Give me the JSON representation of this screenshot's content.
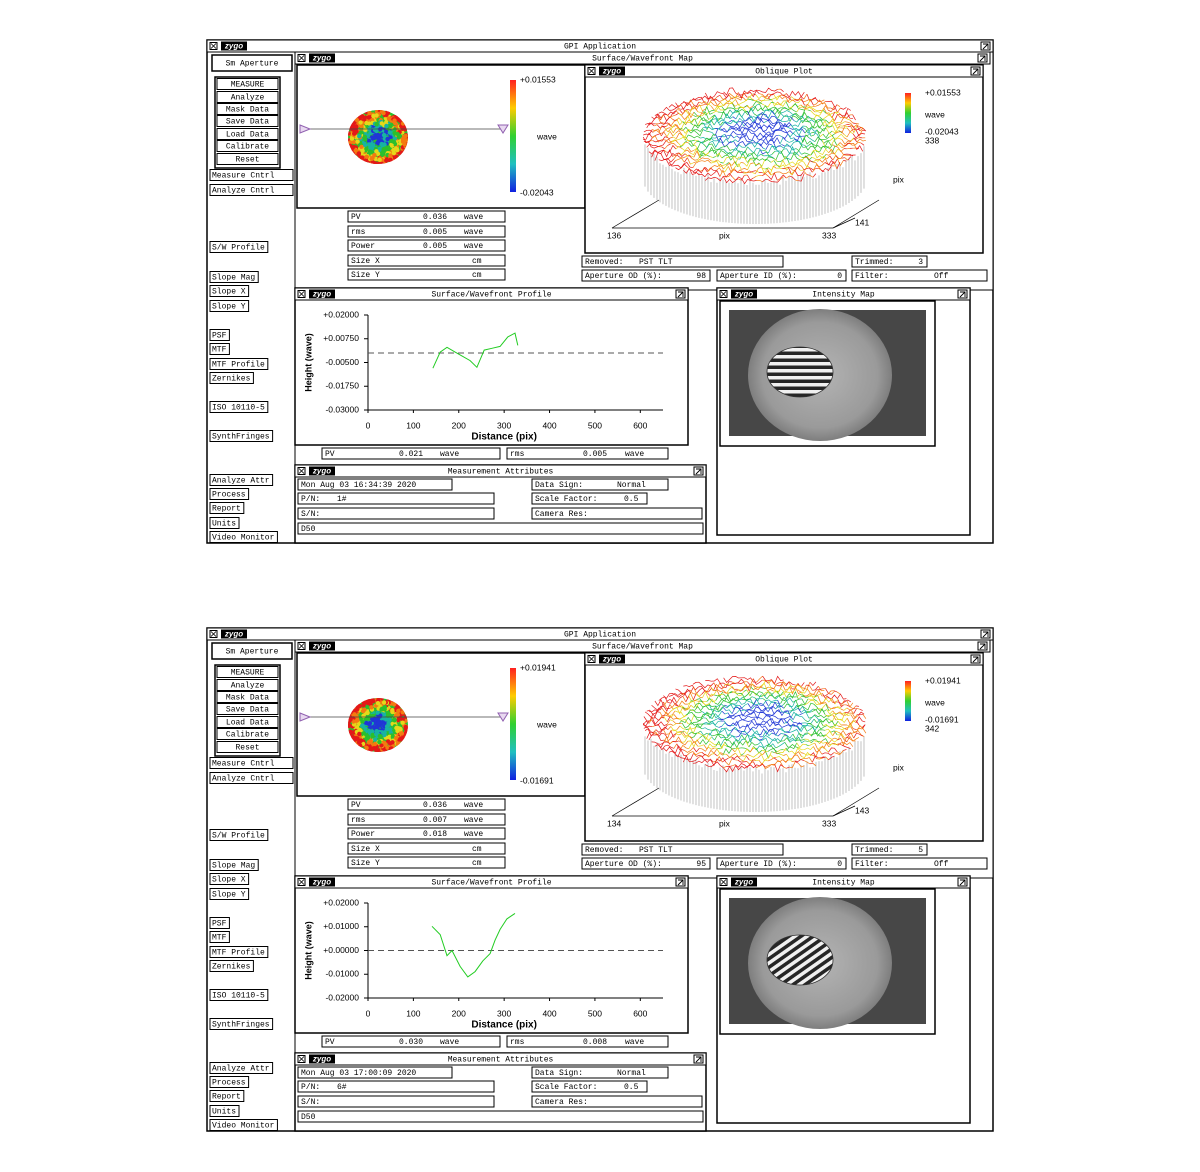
{
  "screens": [
    {
      "app_title": "GPI Application",
      "logo": "zygo",
      "sidebar": [
        "Sm Aperture",
        "MEASURE",
        "Analyze",
        "Mask Data",
        "Save Data",
        "Load Data",
        "Calibrate",
        "Reset",
        "Measure Cntrl",
        "Analyze Cntrl",
        "S/W Profile",
        "Slope Mag",
        "Slope X",
        "Slope Y",
        "PSF",
        "MTF",
        "MTF Profile",
        "Zernikes",
        "ISO 10110-5",
        "SynthFringes",
        "Analyze Attr",
        "Process",
        "Report",
        "Units",
        "Video Monitor"
      ],
      "map": {
        "title": "Surface/Wavefront Map",
        "scale_max": "+0.01553",
        "scale_unit": "wave",
        "scale_min": "-0.02043"
      },
      "results": [
        {
          "label": "PV",
          "value": "0.036",
          "unit": "wave"
        },
        {
          "label": "rms",
          "value": "0.005",
          "unit": "wave"
        },
        {
          "label": "Power",
          "value": "0.005",
          "unit": "wave"
        },
        {
          "label": "Size X",
          "unit": "cm"
        },
        {
          "label": "Size Y",
          "unit": "cm"
        }
      ],
      "oblique": {
        "title": "Oblique Plot",
        "scale_max": "+0.01553",
        "scale_unit": "wave",
        "scale_min": "-0.02043",
        "y_size": "338",
        "x_start": "136",
        "x_label": "pix",
        "x_end": "333",
        "y_start": "141",
        "y_label": "pix"
      },
      "status": {
        "removed_label": "Removed:",
        "removed": "PST TLT",
        "trimmed_label": "Trimmed:",
        "trimmed": "3",
        "od_label": "Aperture OD (%):",
        "od": "98",
        "id_label": "Aperture ID (%):",
        "id": "0",
        "filter_label": "Filter:",
        "filter": "Off"
      },
      "profile": {
        "type": "line",
        "title": "Surface/Wavefront Profile",
        "xlabel": "Distance (pix)",
        "ylabel": "Height (wave)",
        "xlim": [
          0,
          650
        ],
        "ylim": [
          -0.03,
          0.02
        ],
        "xticks": [
          0,
          100,
          200,
          300,
          400,
          500,
          600
        ],
        "yticks": [
          {
            "value": 0.02,
            "label": "+0.02000"
          },
          {
            "value": 0.0075,
            "label": "+0.00750"
          },
          {
            "value": -0.005,
            "label": "-0.00500"
          },
          {
            "value": -0.0175,
            "label": "-0.01750"
          },
          {
            "value": -0.03,
            "label": "-0.03000"
          }
        ],
        "reference_y": 0,
        "color": "#22cc22",
        "x": [
          143,
          159,
          174,
          192,
          207,
          225,
          240,
          256,
          273,
          291,
          308,
          324,
          330
        ],
        "values": [
          -0.008,
          0.0005,
          0.003,
          0.0005,
          -0.0015,
          -0.004,
          -0.0075,
          0.0015,
          0.0025,
          0.0035,
          0.0085,
          0.0105,
          0.004
        ]
      },
      "profile_results": [
        {
          "label": "PV",
          "value": "0.021",
          "unit": "wave"
        },
        {
          "label": "rms",
          "value": "0.005",
          "unit": "wave"
        }
      ],
      "intensity": {
        "title": "Intensity Map"
      },
      "attributes": {
        "title": "Measurement Attributes",
        "date": "Mon Aug 03 16:34:39 2020",
        "data_sign_label": "Data Sign:",
        "data_sign": "Normal",
        "pn_label": "P/N:",
        "pn": "1#",
        "scale_label": "Scale Factor:",
        "scale": "0.5",
        "sn_label": "S/N:",
        "camera_label": "Camera Res:",
        "note": "D50"
      }
    },
    {
      "app_title": "GPI Application",
      "logo": "zygo",
      "sidebar": [
        "Sm Aperture",
        "MEASURE",
        "Analyze",
        "Mask Data",
        "Save Data",
        "Load Data",
        "Calibrate",
        "Reset",
        "Measure Cntrl",
        "Analyze Cntrl",
        "S/W Profile",
        "Slope Mag",
        "Slope X",
        "Slope Y",
        "PSF",
        "MTF",
        "MTF Profile",
        "Zernikes",
        "ISO 10110-5",
        "SynthFringes",
        "Analyze Attr",
        "Process",
        "Report",
        "Units",
        "Video Monitor"
      ],
      "map": {
        "title": "Surface/Wavefront Map",
        "scale_max": "+0.01941",
        "scale_unit": "wave",
        "scale_min": "-0.01691"
      },
      "results": [
        {
          "label": "PV",
          "value": "0.036",
          "unit": "wave"
        },
        {
          "label": "rms",
          "value": "0.007",
          "unit": "wave"
        },
        {
          "label": "Power",
          "value": "0.018",
          "unit": "wave"
        },
        {
          "label": "Size X",
          "unit": "cm"
        },
        {
          "label": "Size Y",
          "unit": "cm"
        }
      ],
      "oblique": {
        "title": "Oblique Plot",
        "scale_max": "+0.01941",
        "scale_unit": "wave",
        "scale_min": "-0.01691",
        "y_size": "342",
        "x_start": "134",
        "x_label": "pix",
        "x_end": "333",
        "y_start": "143",
        "y_label": "pix"
      },
      "status": {
        "removed_label": "Removed:",
        "removed": "PST TLT",
        "trimmed_label": "Trimmed:",
        "trimmed": "5",
        "od_label": "Aperture OD (%):",
        "od": "95",
        "id_label": "Aperture ID (%):",
        "id": "0",
        "filter_label": "Filter:",
        "filter": "Off"
      },
      "profile": {
        "type": "line",
        "title": "Surface/Wavefront Profile",
        "xlabel": "Distance (pix)",
        "ylabel": "Height (wave)",
        "xlim": [
          0,
          650
        ],
        "ylim": [
          -0.02,
          0.02
        ],
        "xticks": [
          0,
          100,
          200,
          300,
          400,
          500,
          600
        ],
        "yticks": [
          {
            "value": 0.02,
            "label": "+0.02000"
          },
          {
            "value": 0.01,
            "label": "+0.01000"
          },
          {
            "value": 0,
            "label": "+0.00000"
          },
          {
            "value": -0.01,
            "label": "-0.01000"
          },
          {
            "value": -0.02,
            "label": "-0.02000"
          }
        ],
        "reference_y": 0,
        "color": "#22cc22",
        "x": [
          141,
          159,
          174,
          185,
          203,
          220,
          236,
          253,
          269,
          280,
          291,
          306,
          324
        ],
        "values": [
          0.0102,
          0.0067,
          -0.0022,
          0,
          -0.0067,
          -0.0111,
          -0.0089,
          -0.0044,
          -0.0013,
          0.0044,
          0.0089,
          0.0133,
          0.0156
        ]
      },
      "profile_results": [
        {
          "label": "PV",
          "value": "0.030",
          "unit": "wave"
        },
        {
          "label": "rms",
          "value": "0.008",
          "unit": "wave"
        }
      ],
      "intensity": {
        "title": "Intensity Map"
      },
      "attributes": {
        "title": "Measurement Attributes",
        "date": "Mon Aug 03 17:00:09 2020",
        "data_sign_label": "Data Sign:",
        "data_sign": "Normal",
        "pn_label": "P/N:",
        "pn": "6#",
        "scale_label": "Scale Factor:",
        "scale": "0.5",
        "sn_label": "S/N:",
        "camera_label": "Camera Res:",
        "note": "D50"
      }
    }
  ]
}
